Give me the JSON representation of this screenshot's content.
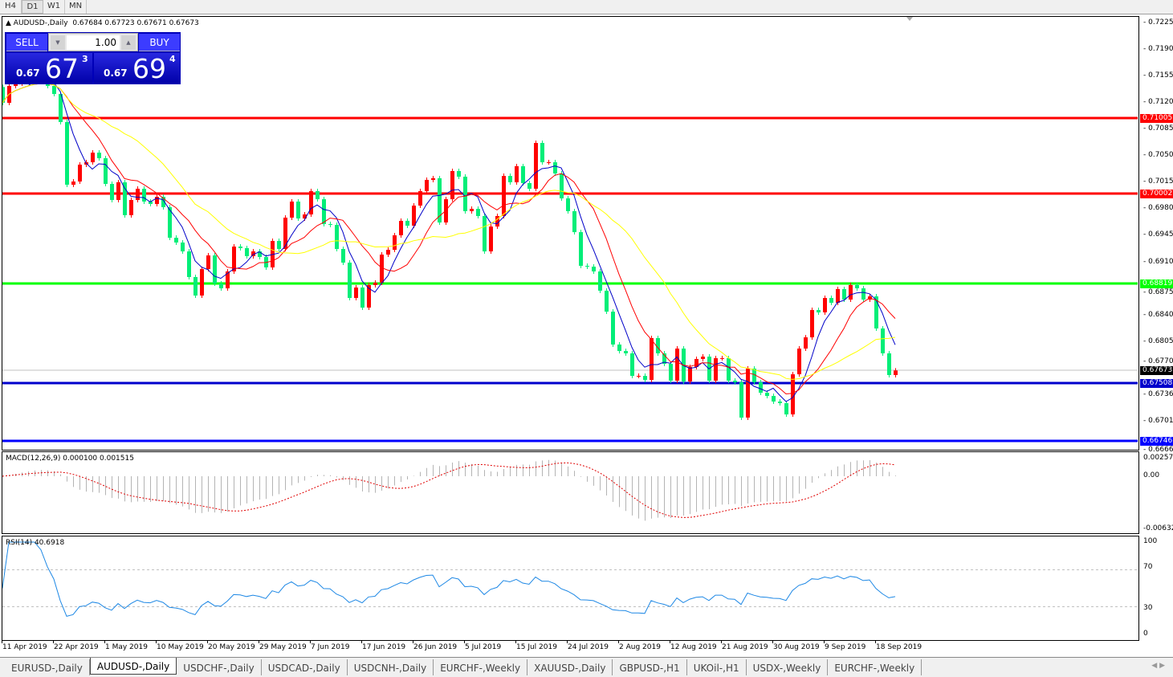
{
  "timeframes": [
    "H4",
    "D1",
    "W1",
    "MN"
  ],
  "active_timeframe": "D1",
  "chart_title": "AUDUSD-,Daily",
  "ohlc_readout": "0.67684 0.67723 0.67671 0.67673",
  "one_click": {
    "sell_label": "SELL",
    "buy_label": "BUY",
    "lot": "1.00",
    "sell": {
      "small": "0.67",
      "big": "67",
      "exp": "3"
    },
    "buy": {
      "small": "0.67",
      "big": "69",
      "exp": "4"
    }
  },
  "price_axis": [
    "0.72250",
    "0.71900",
    "0.71550",
    "0.71200",
    "0.70850",
    "0.70500",
    "0.70150",
    "0.69800",
    "0.69450",
    "0.69100",
    "0.68750",
    "0.68400",
    "0.68050",
    "0.67700",
    "0.67360",
    "0.67010",
    "0.66660"
  ],
  "levels": [
    {
      "price": "0.71005",
      "color": "#ff0000"
    },
    {
      "price": "0.70002",
      "color": "#ff0000"
    },
    {
      "price": "0.68819",
      "color": "#00ff00"
    },
    {
      "price": "0.67508",
      "color": "#0000cc"
    },
    {
      "price": "0.66746",
      "color": "#0000ff"
    }
  ],
  "current_price": "0.67673",
  "macd": {
    "label": "MACD(12,26,9) 0.000100 0.001515",
    "axis": [
      "0.002574",
      "0.00",
      "-0.006326"
    ]
  },
  "rsi": {
    "label": "RSI(14) 40.6918",
    "axis": [
      "100",
      "70",
      "30",
      "0"
    ]
  },
  "tabs": [
    "EURUSD-,Daily",
    "AUDUSD-,Daily",
    "USDCHF-,Daily",
    "USDCAD-,Daily",
    "USDCNH-,Daily",
    "EURCHF-,Weekly",
    "XAUUSD-,Daily",
    "GBPUSD-,H1",
    "UKOil-,H1",
    "USDX-,Weekly",
    "EURCHF-,Weekly"
  ],
  "active_tab": 1,
  "colors": {
    "bull": "#ff0000",
    "bear": "#00ee78",
    "ma_fast": "#0000c8",
    "ma_mid": "#ff0000",
    "ma_slow": "#ffff00",
    "rsi": "#1e88e5",
    "macd_hist": "#b4b4b4",
    "macd_signal": "#e00000"
  },
  "chart_data": {
    "type": "candlestick",
    "symbol": "AUDUSD-,Daily",
    "x_tick_labels": [
      "11 Apr 2019",
      "22 Apr 2019",
      "1 May 2019",
      "10 May 2019",
      "20 May 2019",
      "29 May 2019",
      "7 Jun 2019",
      "17 Jun 2019",
      "26 Jun 2019",
      "5 Jul 2019",
      "15 Jul 2019",
      "24 Jul 2019",
      "2 Aug 2019",
      "12 Aug 2019",
      "21 Aug 2019",
      "30 Aug 2019",
      "9 Sep 2019",
      "18 Sep 2019"
    ],
    "ylim": [
      0.6666,
      0.7225
    ],
    "first_open": 0.7141,
    "close": [
      0.71202,
      0.71424,
      0.71456,
      0.71498,
      0.71541,
      0.71551,
      0.71519,
      0.71424,
      0.71318,
      0.70948,
      0.70122,
      0.70164,
      0.70387,
      0.70418,
      0.70545,
      0.70471,
      0.70133,
      0.69921,
      0.70154,
      0.6972,
      0.69921,
      0.70069,
      0.699,
      0.69868,
      0.69963,
      0.69826,
      0.69423,
      0.6936,
      0.69243,
      0.68905,
      0.68661,
      0.6901,
      0.6919,
      0.6882,
      0.68756,
      0.68979,
      0.69307,
      0.69286,
      0.6918,
      0.69243,
      0.69169,
      0.69032,
      0.69381,
      0.69275,
      0.69688,
      0.699,
      0.69677,
      0.6973,
      0.70037,
      0.69931,
      0.69603,
      0.69593,
      0.69275,
      0.69095,
      0.68629,
      0.68767,
      0.68502,
      0.68799,
      0.6883,
      0.69201,
      0.69264,
      0.69455,
      0.69646,
      0.69582,
      0.69847,
      0.70037,
      0.70186,
      0.70207,
      0.69624,
      0.69931,
      0.70302,
      0.70228,
      0.69773,
      0.69804,
      0.69709,
      0.69243,
      0.69571,
      0.69709,
      0.70238,
      0.70154,
      0.70366,
      0.70143,
      0.70069,
      0.70673,
      0.70418,
      0.70418,
      0.7027,
      0.69942,
      0.69773,
      0.69497,
      0.69053,
      0.69042,
      0.68979,
      0.68725,
      0.68449,
      0.68015,
      0.6793,
      0.67899,
      0.67602,
      0.67602,
      0.67549,
      0.681,
      0.67899,
      0.67761,
      0.67539,
      0.67962,
      0.67528,
      0.67719,
      0.67825,
      0.67856,
      0.67539,
      0.67835,
      0.67835,
      0.67539,
      0.67518,
      0.67052,
      0.67698,
      0.67518,
      0.6738,
      0.67338,
      0.67264,
      0.67242,
      0.67094,
      0.67623,
      0.67962,
      0.6811,
      0.6847,
      0.68439,
      0.68629,
      0.68566,
      0.68746,
      0.68608,
      0.68799,
      0.68756,
      0.68608,
      0.6865,
      0.68227,
      0.67899,
      0.67613,
      0.67673
    ],
    "indicators": [
      "MACD(12,26,9)",
      "RSI(14)"
    ]
  }
}
